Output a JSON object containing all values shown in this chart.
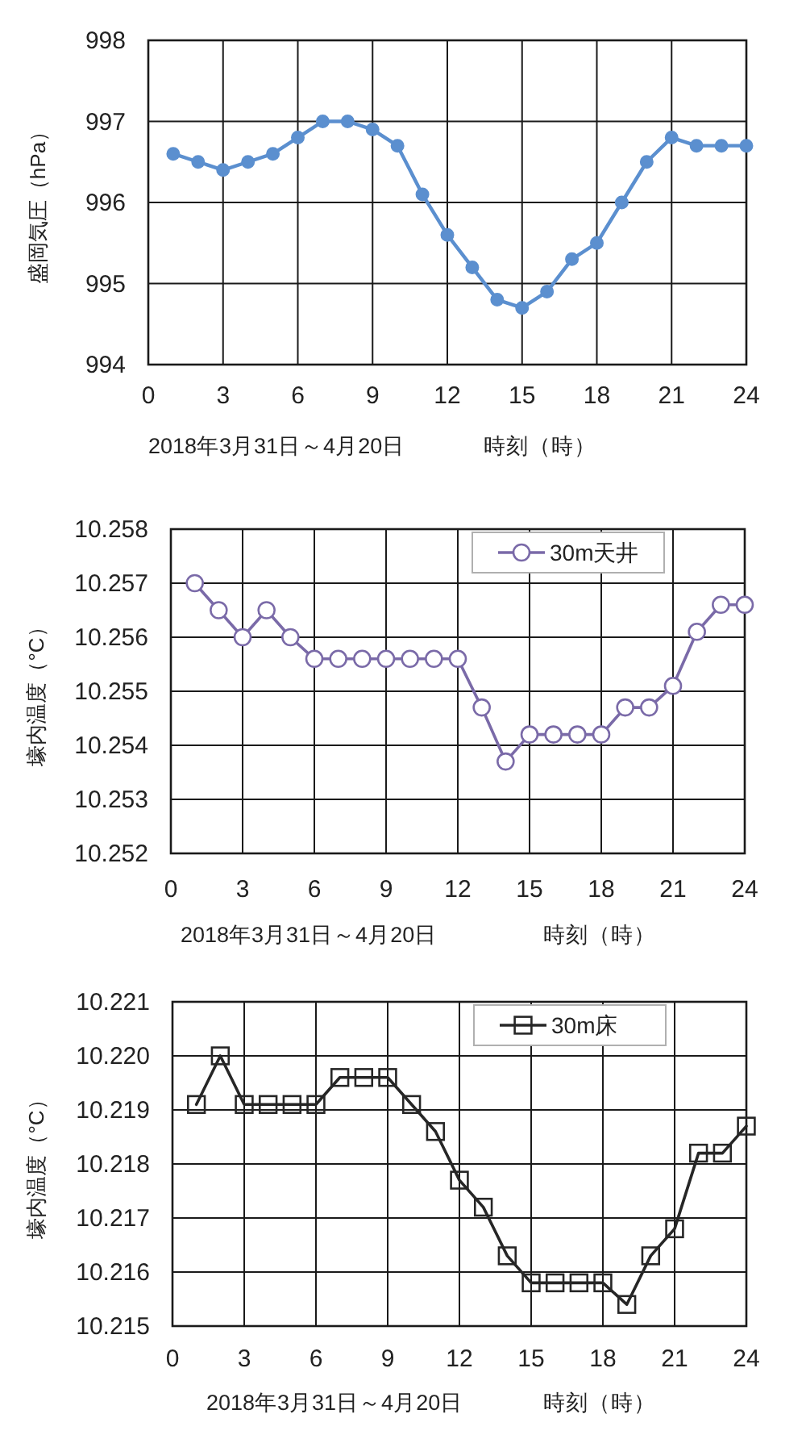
{
  "chart_data": [
    {
      "type": "line",
      "ylabel": "盛岡気圧（hPa）",
      "xlabel": "時刻（時）",
      "annotations": [
        "2018年3月31日～4月20日"
      ],
      "x": [
        1,
        2,
        3,
        4,
        5,
        6,
        7,
        8,
        9,
        10,
        11,
        12,
        13,
        14,
        15,
        16,
        17,
        18,
        19,
        20,
        21,
        22,
        23,
        24
      ],
      "series": [
        {
          "color": "#5b8fcf",
          "values": [
            996.6,
            996.5,
            996.4,
            996.5,
            996.6,
            996.8,
            997.0,
            997.0,
            996.9,
            996.7,
            996.1,
            995.6,
            995.2,
            994.8,
            994.7,
            994.9,
            995.3,
            995.5,
            996.0,
            996.5,
            996.8,
            996.7,
            996.7,
            996.7
          ]
        }
      ],
      "xlim": [
        0,
        24
      ],
      "xticks": [
        0,
        3,
        6,
        9,
        12,
        15,
        18,
        21,
        24
      ],
      "ylim": [
        994,
        998
      ],
      "yticks": [
        994,
        995,
        996,
        997,
        998
      ],
      "grid": true,
      "marker": "circle",
      "line_style": "solid"
    },
    {
      "type": "line",
      "ylabel": "壕内温度（°C）",
      "xlabel": "時刻（時）",
      "annotations": [
        "2018年3月31日～4月20日"
      ],
      "x": [
        1,
        2,
        3,
        4,
        5,
        6,
        7,
        8,
        9,
        10,
        11,
        12,
        13,
        14,
        15,
        16,
        17,
        18,
        19,
        20,
        21,
        22,
        23,
        24
      ],
      "series": [
        {
          "name": "30m天井",
          "color": "#7a6aa8",
          "values": [
            10.257,
            10.2565,
            10.256,
            10.2565,
            10.256,
            10.2556,
            10.2556,
            10.2556,
            10.2556,
            10.2556,
            10.2556,
            10.2556,
            10.2547,
            10.2537,
            10.2542,
            10.2542,
            10.2542,
            10.2542,
            10.2547,
            10.2547,
            10.2551,
            10.2561,
            10.2566,
            10.2566
          ]
        }
      ],
      "xlim": [
        0,
        24
      ],
      "xticks": [
        0,
        3,
        6,
        9,
        12,
        15,
        18,
        21,
        24
      ],
      "ylim": [
        10.252,
        10.258
      ],
      "yticks": [
        10.252,
        10.253,
        10.254,
        10.255,
        10.256,
        10.257,
        10.258
      ],
      "grid": true,
      "legend": "top right",
      "marker": "circle",
      "line_style": "solid"
    },
    {
      "type": "line",
      "ylabel": "壕内温度（°C）",
      "xlabel": "時刻（時）",
      "annotations": [
        "2018年3月31日～4月20日"
      ],
      "x": [
        1,
        2,
        3,
        4,
        5,
        6,
        7,
        8,
        9,
        10,
        11,
        12,
        13,
        14,
        15,
        16,
        17,
        18,
        19,
        20,
        21,
        22,
        23,
        24
      ],
      "series": [
        {
          "name": "30m床",
          "color": "#262626",
          "values": [
            10.2191,
            10.22,
            10.2191,
            10.2191,
            10.2191,
            10.2191,
            10.2196,
            10.2196,
            10.2196,
            10.2191,
            10.2186,
            10.2177,
            10.2172,
            10.2163,
            10.2158,
            10.2158,
            10.2158,
            10.2158,
            10.2154,
            10.2163,
            10.2168,
            10.2182,
            10.2182,
            10.2187
          ]
        }
      ],
      "xlim": [
        0,
        24
      ],
      "xticks": [
        0,
        3,
        6,
        9,
        12,
        15,
        18,
        21,
        24
      ],
      "ylim": [
        10.215,
        10.221
      ],
      "yticks": [
        10.215,
        10.216,
        10.217,
        10.218,
        10.219,
        {
          "value": 10.22,
          "label": "10.220"
        },
        10.221
      ],
      "grid": true,
      "legend": "top right",
      "marker": "square",
      "line_style": "solid"
    }
  ]
}
